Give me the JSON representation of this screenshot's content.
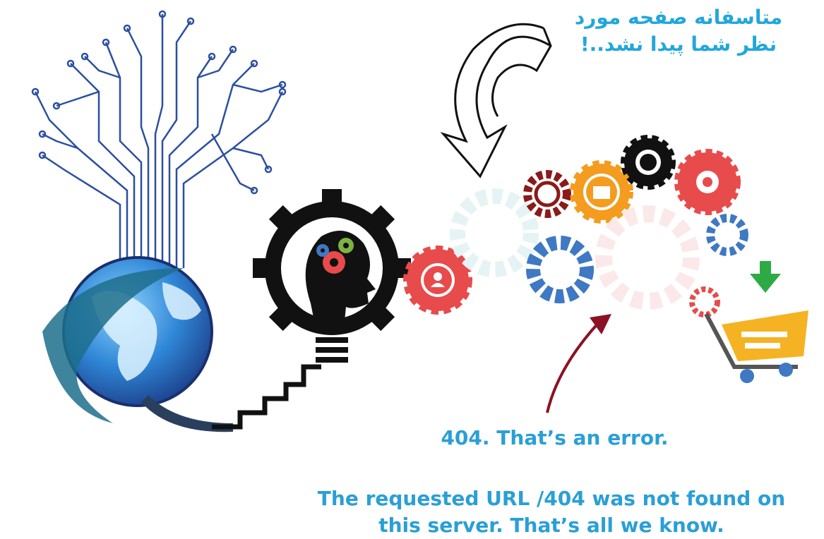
{
  "persian_message": {
    "line1": "متاسفانه صفحه مورد",
    "line2": "نظر شما پیدا نشد..!"
  },
  "error": {
    "title": "404. That’s an error.",
    "line1": "The requested URL /404 was not found on",
    "line2": "this server. That’s all we know."
  },
  "colors": {
    "text_blue": "#2a9fd6",
    "globe_blue": "#2f6fb8",
    "gear_red": "#e84b4b",
    "gear_orange": "#f39c1f",
    "gear_black": "#111111",
    "gear_blue": "#3f78c3",
    "gear_darkred": "#8b1a1a",
    "cart_yellow": "#f5b323",
    "arrow_green": "#2eaa45",
    "arrow_maroon": "#8b1224"
  }
}
